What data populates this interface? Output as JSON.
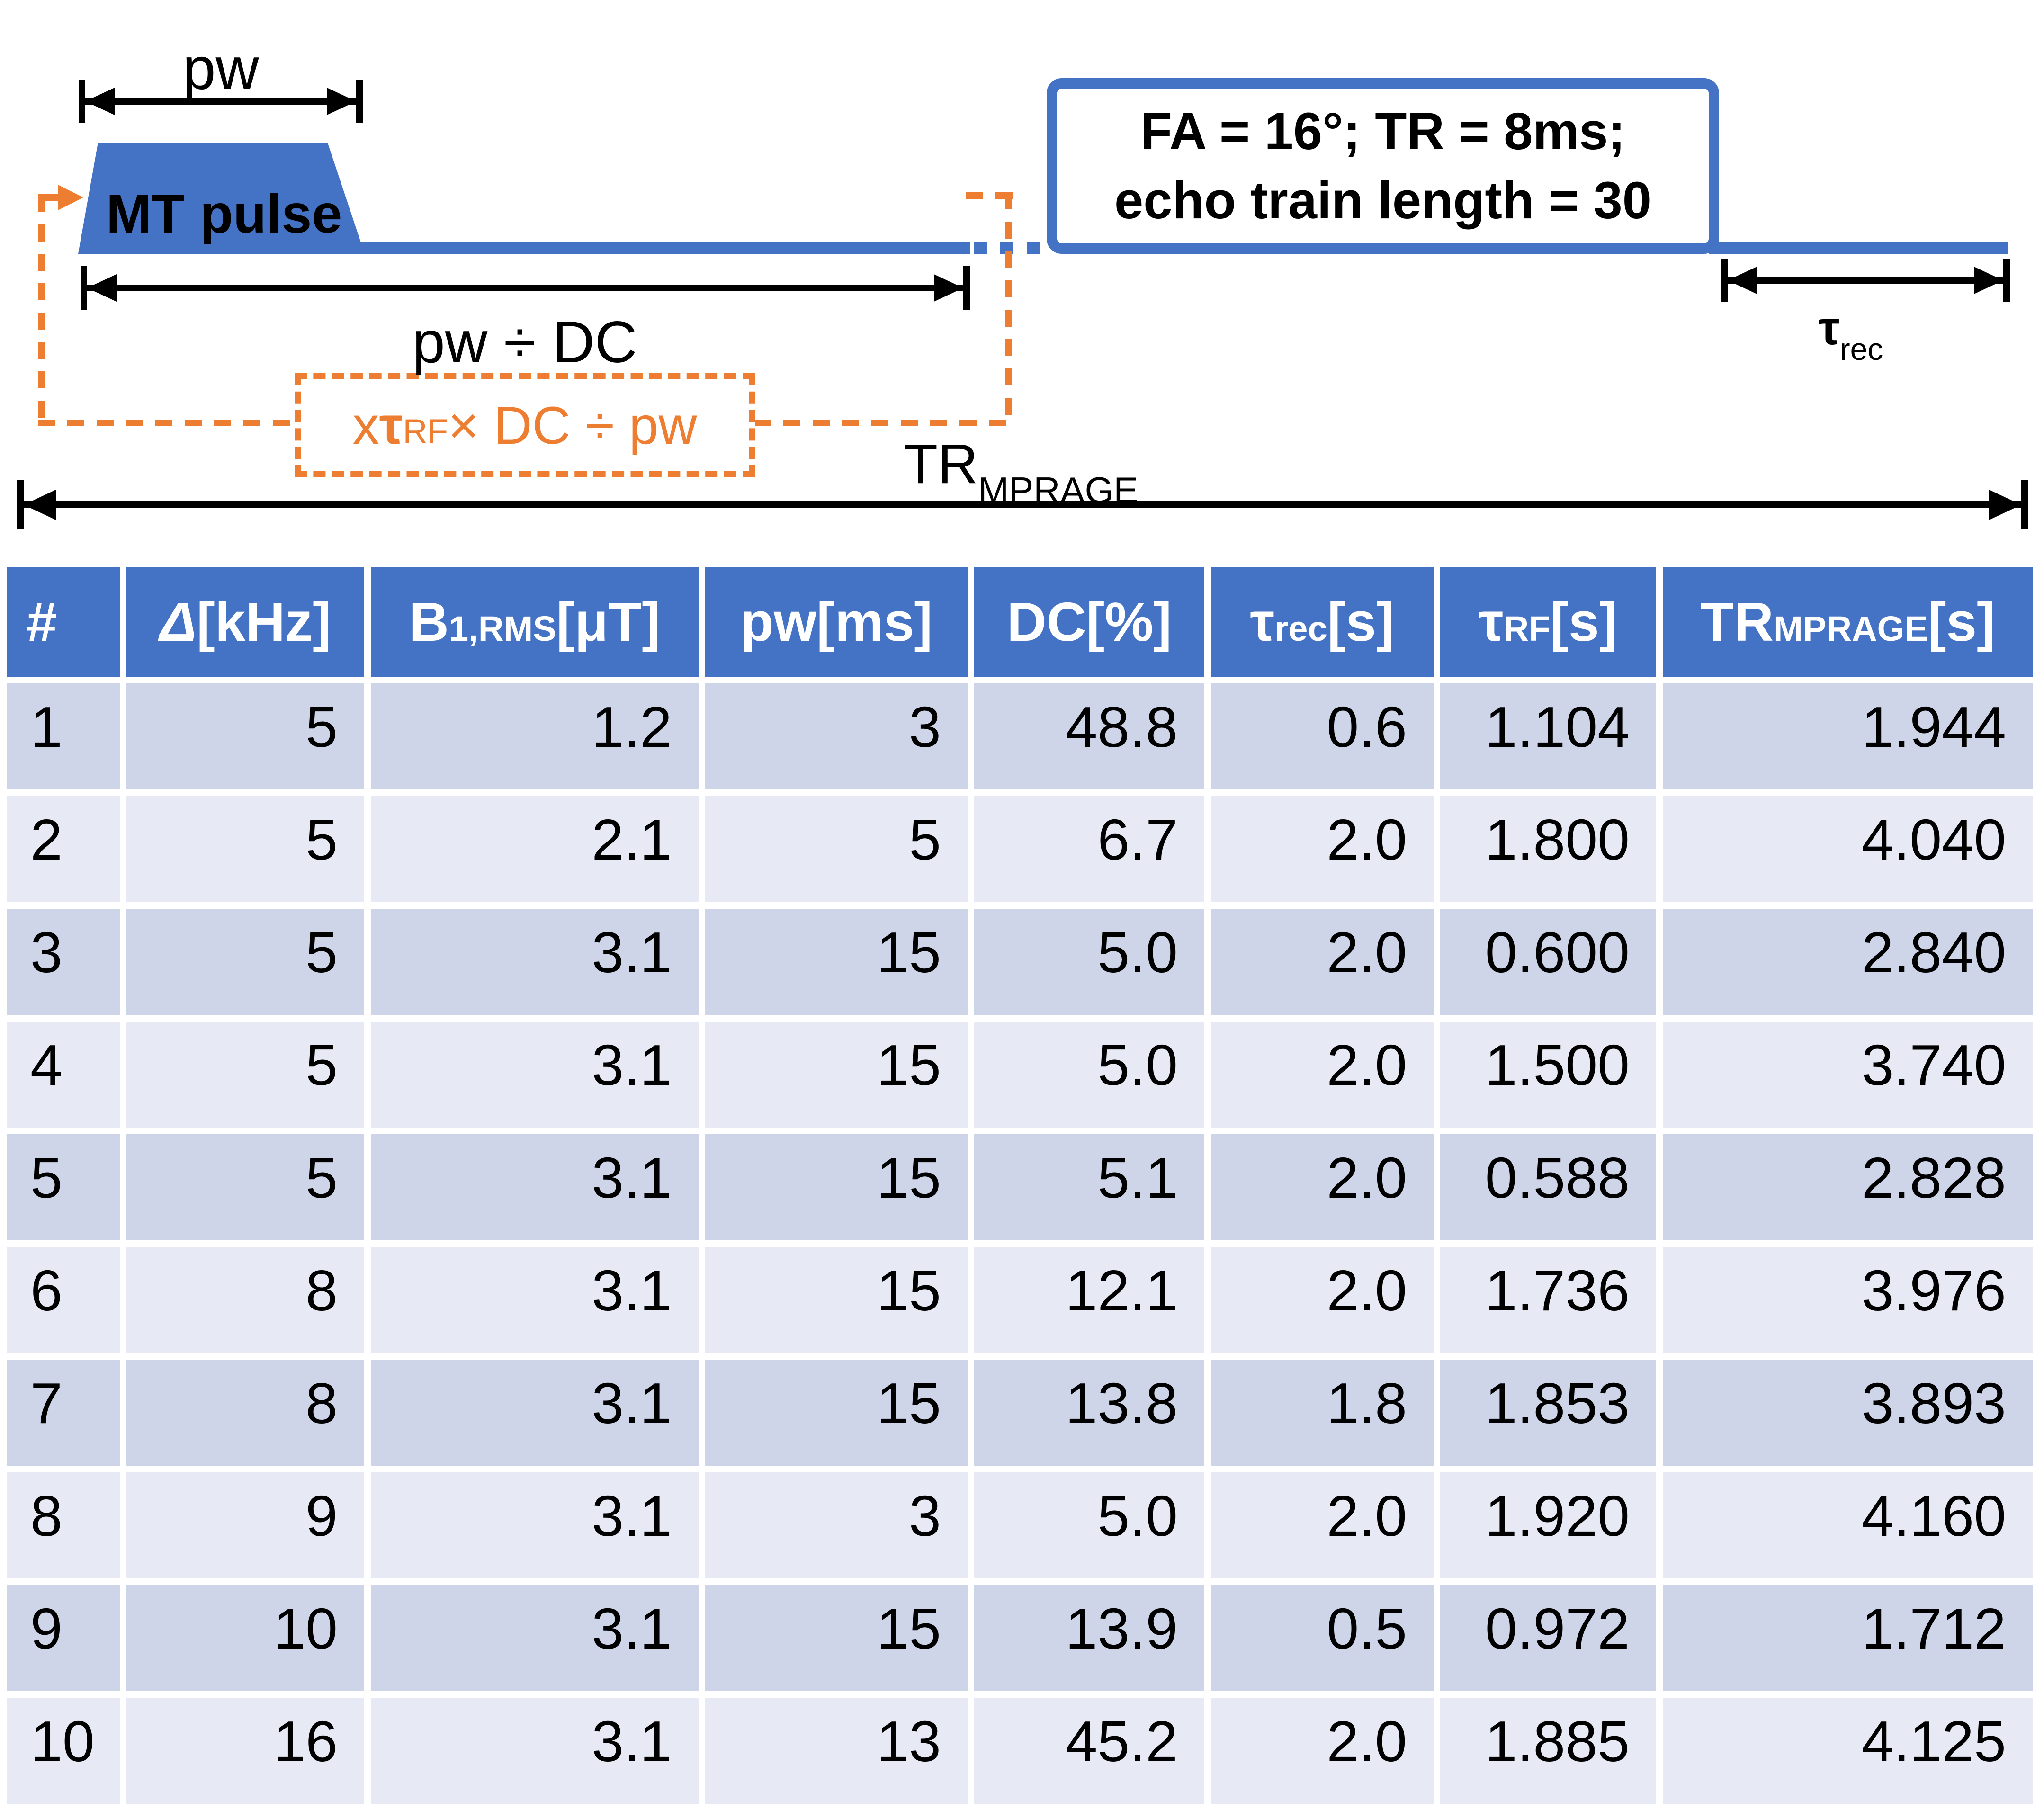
{
  "colors": {
    "blue": "#4472C4",
    "orange": "#ED7D31",
    "band_dark": "#CFD5E9",
    "band_light": "#E7EAF4",
    "header_bg": "#4472C4"
  },
  "diagram": {
    "pw_label": "pw",
    "mt_pulse_label": "MT pulse",
    "readout_box": {
      "line1": "FA = 16°; TR = 8ms;",
      "line2": "echo train length = 30"
    },
    "pw_dc_label": "pw ÷ DC",
    "formula": {
      "prefix": "x ",
      "tau": "τ",
      "tau_sub": "RF",
      "suffix": " × DC ÷ pw"
    },
    "tr_mprage_label": {
      "main": "TR",
      "sub": "MPRAGE"
    },
    "tau_rec_label": {
      "main": "τ",
      "sub": "rec"
    }
  },
  "table": {
    "headers": [
      {
        "main": "#",
        "sub": "",
        "unit": "",
        "italic": false
      },
      {
        "main": "Δ",
        "sub": "",
        "unit": " [kHz]",
        "italic": true
      },
      {
        "main": "B",
        "sub": "1,RMS",
        "unit": " [μT]",
        "italic": false
      },
      {
        "main": "pw",
        "sub": "",
        "unit": " [ms]",
        "italic": false
      },
      {
        "main": "DC",
        "sub": "",
        "unit": " [%]",
        "italic": false
      },
      {
        "main": "τ",
        "sub": "rec",
        "unit": " [s]",
        "italic": false
      },
      {
        "main": "τ",
        "sub": "RF",
        "unit": " [s]",
        "italic": false
      },
      {
        "main": "TR",
        "sub": "MPRAGE",
        "unit": " [s]",
        "italic": false
      }
    ],
    "rows": [
      [
        "1",
        "5",
        "1.2",
        "3",
        "48.8",
        "0.6",
        "1.104",
        "1.944"
      ],
      [
        "2",
        "5",
        "2.1",
        "5",
        "6.7",
        "2.0",
        "1.800",
        "4.040"
      ],
      [
        "3",
        "5",
        "3.1",
        "15",
        "5.0",
        "2.0",
        "0.600",
        "2.840"
      ],
      [
        "4",
        "5",
        "3.1",
        "15",
        "5.0",
        "2.0",
        "1.500",
        "3.740"
      ],
      [
        "5",
        "5",
        "3.1",
        "15",
        "5.1",
        "2.0",
        "0.588",
        "2.828"
      ],
      [
        "6",
        "8",
        "3.1",
        "15",
        "12.1",
        "2.0",
        "1.736",
        "3.976"
      ],
      [
        "7",
        "8",
        "3.1",
        "15",
        "13.8",
        "1.8",
        "1.853",
        "3.893"
      ],
      [
        "8",
        "9",
        "3.1",
        "3",
        "5.0",
        "2.0",
        "1.920",
        "4.160"
      ],
      [
        "9",
        "10",
        "3.1",
        "15",
        "13.9",
        "0.5",
        "0.972",
        "1.712"
      ],
      [
        "10",
        "16",
        "3.1",
        "13",
        "45.2",
        "2.0",
        "1.885",
        "4.125"
      ]
    ]
  },
  "chart_data": {
    "type": "table",
    "title": "MT-MPRAGE acquisition parameters",
    "columns": [
      "#",
      "Δ [kHz]",
      "B1,RMS [μT]",
      "pw [ms]",
      "DC [%]",
      "τrec [s]",
      "τRF [s]",
      "TRMPRAGE [s]"
    ],
    "rows": [
      [
        1,
        5,
        1.2,
        3,
        48.8,
        0.6,
        1.104,
        1.944
      ],
      [
        2,
        5,
        2.1,
        5,
        6.7,
        2.0,
        1.8,
        4.04
      ],
      [
        3,
        5,
        3.1,
        15,
        5.0,
        2.0,
        0.6,
        2.84
      ],
      [
        4,
        5,
        3.1,
        15,
        5.0,
        2.0,
        1.5,
        3.74
      ],
      [
        5,
        5,
        3.1,
        15,
        5.1,
        2.0,
        0.588,
        2.828
      ],
      [
        6,
        8,
        3.1,
        15,
        12.1,
        2.0,
        1.736,
        3.976
      ],
      [
        7,
        8,
        3.1,
        15,
        13.8,
        1.8,
        1.853,
        3.893
      ],
      [
        8,
        9,
        3.1,
        3,
        5.0,
        2.0,
        1.92,
        4.16
      ],
      [
        9,
        10,
        3.1,
        15,
        13.9,
        0.5,
        0.972,
        1.712
      ],
      [
        10,
        16,
        3.1,
        13,
        45.2,
        2.0,
        1.885,
        4.125
      ]
    ]
  }
}
